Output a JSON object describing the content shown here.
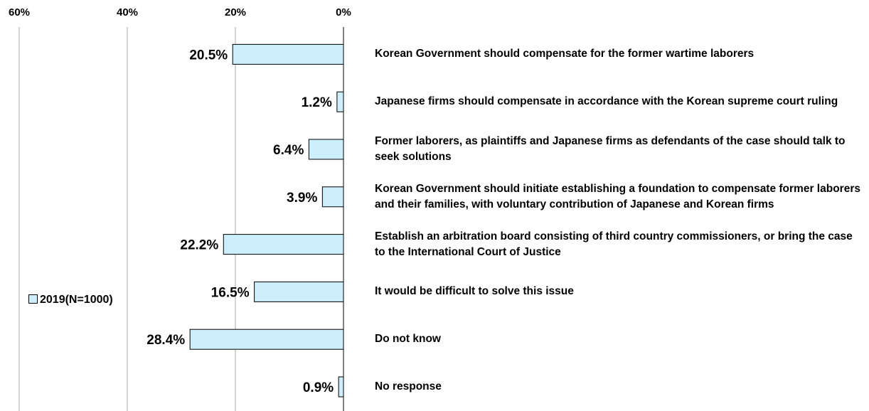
{
  "chart_data": {
    "type": "bar",
    "orientation": "horizontal",
    "x_axis": {
      "reversed": true,
      "xlim": [
        60,
        0
      ],
      "ticks": [
        "60%",
        "40%",
        "20%",
        "0%"
      ],
      "position": "top"
    },
    "grid": true,
    "legend": {
      "position": "left",
      "label": "2019(N=1000)"
    },
    "bar_color": "#cdeefc",
    "categories": [
      "Korean Government should compensate for the former wartime laborers",
      "Japanese firms should compensate in accordance with the Korean supreme court ruling",
      "Former laborers, as plaintiffs and Japanese firms as defendants of the case should talk to seek solutions",
      "Korean Government should initiate establishing a foundation to compensate former laborers and their families, with voluntary contribution of Japanese and Korean firms",
      "Establish an arbitration board consisting of third country commissioners, or bring the case to the International Court of Justice",
      "It would be difficult to solve this issue",
      "Do not know",
      "No response"
    ],
    "series": [
      {
        "name": "2019(N=1000)",
        "values": [
          20.5,
          1.2,
          6.4,
          3.9,
          22.2,
          16.5,
          28.4,
          0.9
        ]
      }
    ],
    "value_labels": [
      "20.5%",
      "1.2%",
      "6.4%",
      "3.9%",
      "22.2%",
      "16.5%",
      "28.4%",
      "0.9%"
    ]
  }
}
